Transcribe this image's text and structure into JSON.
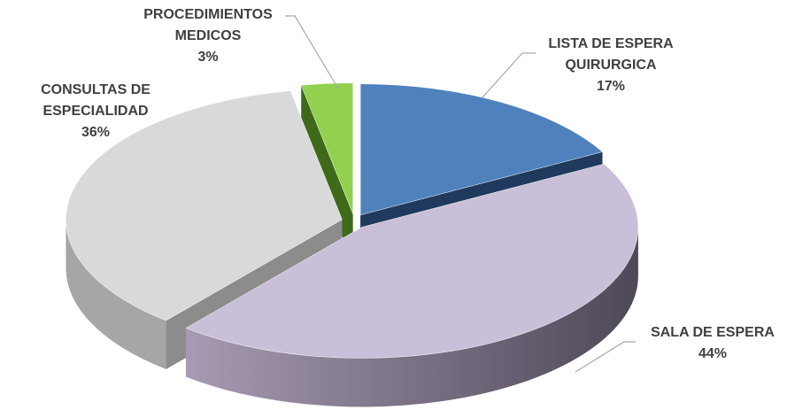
{
  "chart_data": {
    "type": "pie3d",
    "categories": [
      "LISTA DE ESPERA QUIRURGICA",
      "SALA DE ESPERA",
      "CONSULTAS DE ESPECIALIDAD",
      "PROCEDIMIENTOS MEDICOS"
    ],
    "values": [
      17,
      44,
      36,
      3
    ],
    "value_labels": [
      "17%",
      "44%",
      "36%",
      "3%"
    ],
    "colors": [
      "#4f81bd",
      "#c9bfd9",
      "#d9d9d9",
      "#92d050"
    ]
  }
}
